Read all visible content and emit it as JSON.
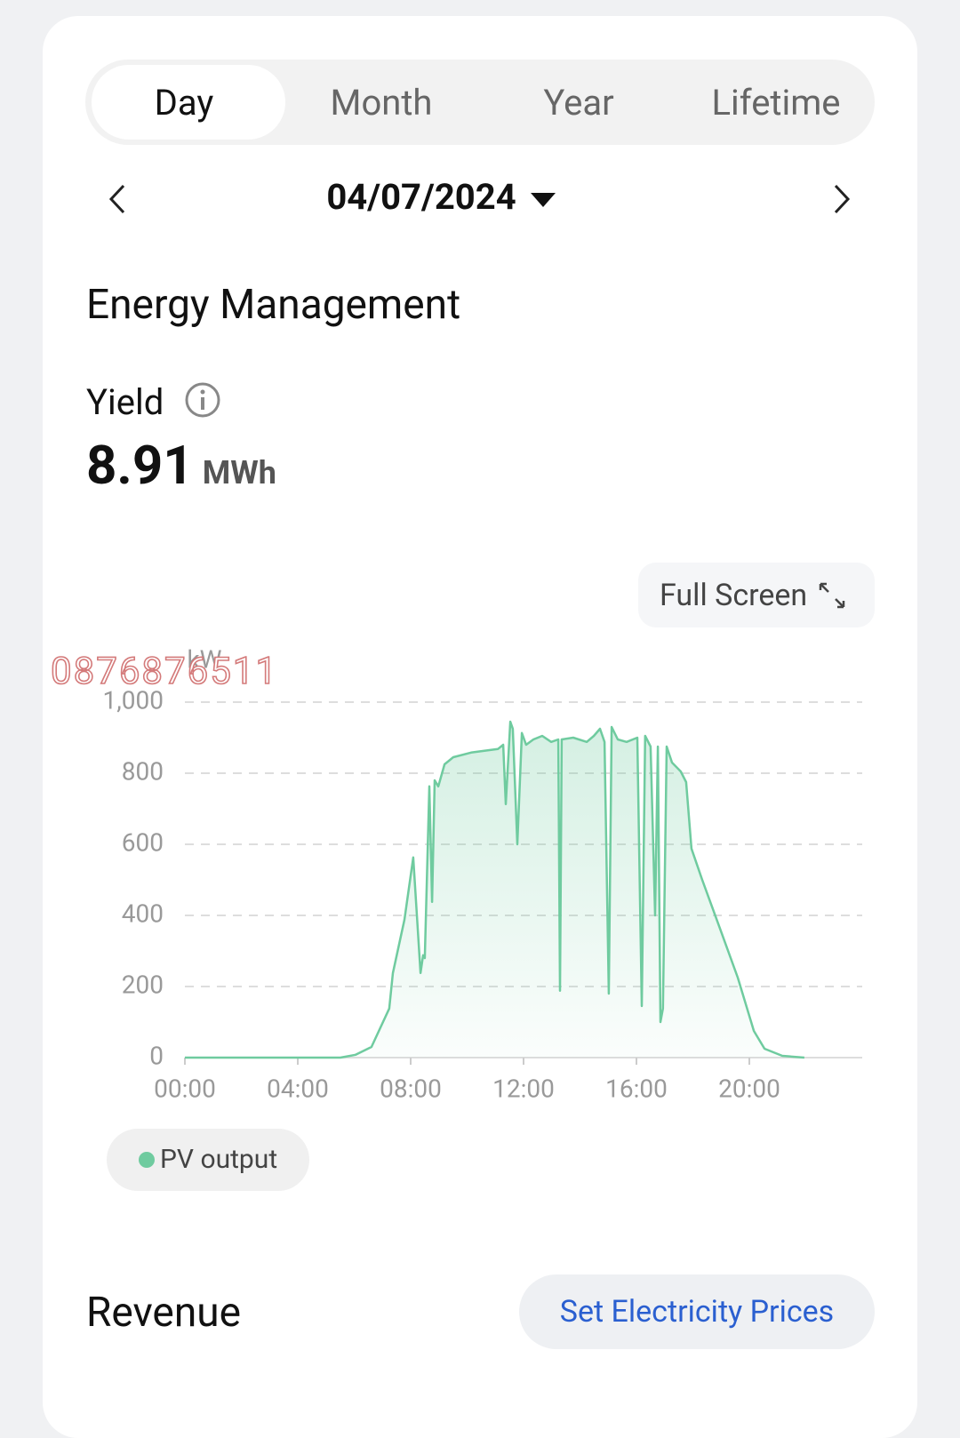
{
  "tabs": [
    "Day",
    "Month",
    "Year",
    "Lifetime"
  ],
  "date": "04/07/2024",
  "section_title": "Energy Management",
  "yield": {
    "label": "Yield",
    "value": 8.91,
    "unit": "MWh"
  },
  "full_screen": "Full Screen",
  "watermark": "0876876511",
  "chart_data": {
    "type": "line",
    "y_unit": "kW",
    "x": [
      0,
      5.51,
      6.05,
      6.61,
      7.24,
      7.37,
      7.78,
      8.09,
      8.35,
      8.44,
      8.5,
      8.66,
      8.76,
      8.85,
      8.98,
      9.2,
      9.51,
      10.14,
      10.61,
      11.09,
      11.28,
      11.37,
      11.53,
      11.62,
      11.78,
      11.94,
      12.09,
      12.35,
      12.66,
      12.98,
      13.23,
      13.29,
      13.35,
      13.76,
      14.24,
      14.49,
      14.71,
      14.87,
      15.02,
      15.12,
      15.34,
      15.65,
      16.03,
      16.19,
      16.31,
      16.5,
      16.66,
      16.76,
      16.85,
      16.94,
      17.07,
      17.26,
      17.57,
      17.76,
      17.95,
      18.33,
      18.96,
      19.59,
      20.16,
      20.54,
      21.17,
      21.95
    ],
    "xlim": [
      0,
      24
    ],
    "xticks": [
      {
        "value": 0,
        "label": "00:00"
      },
      {
        "value": 4,
        "label": "04:00"
      },
      {
        "value": 8,
        "label": "08:00"
      },
      {
        "value": 12,
        "label": "12:00"
      },
      {
        "value": 16,
        "label": "16:00"
      },
      {
        "value": 20,
        "label": "20:00"
      }
    ],
    "ylim": [
      0,
      1000
    ],
    "yticks": [
      0,
      200,
      400,
      600,
      800,
      {
        "value": 1000,
        "label": "1,000"
      }
    ],
    "grid": true,
    "series": [
      {
        "name": "PV output",
        "color": "#6fcb9f",
        "values": [
          0,
          0,
          8,
          30,
          138,
          238,
          388,
          563,
          238,
          288,
          280,
          763,
          438,
          780,
          763,
          825,
          845,
          858,
          863,
          868,
          880,
          713,
          945,
          925,
          600,
          913,
          880,
          895,
          905,
          888,
          895,
          188,
          895,
          900,
          888,
          905,
          925,
          888,
          180,
          930,
          895,
          888,
          900,
          145,
          905,
          875,
          400,
          875,
          100,
          138,
          875,
          830,
          805,
          775,
          588,
          500,
          363,
          225,
          75,
          25,
          5,
          0
        ]
      }
    ]
  },
  "revenue": {
    "title": "Revenue",
    "button": "Set Electricity Prices"
  }
}
